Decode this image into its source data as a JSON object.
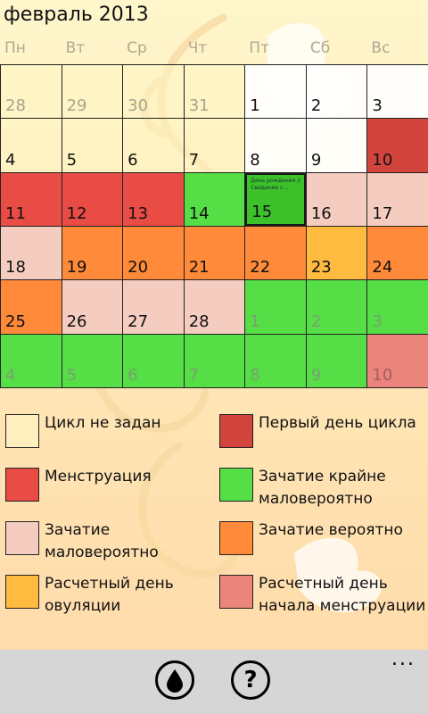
{
  "header": {
    "title": "февраль 2013"
  },
  "weekdays": [
    "Пн",
    "Вт",
    "Ср",
    "Чт",
    "Пт",
    "Сб",
    "Вс"
  ],
  "colors": {
    "none": "#fff6c4",
    "white": "#ffffff",
    "menstruation": "#e84c45",
    "first_day": "#d1453c",
    "low_chance": "#f4ccc0",
    "very_low": "#55de45",
    "likely": "#ff8a3a",
    "ovulation": "#ffbb3f",
    "predicted_menstruation": "#eb847a",
    "today_green": "#3dc12b"
  },
  "calendar": {
    "rows": [
      [
        {
          "day": "28",
          "color": "none",
          "other": true
        },
        {
          "day": "29",
          "color": "none",
          "other": true
        },
        {
          "day": "30",
          "color": "none",
          "other": true
        },
        {
          "day": "31",
          "color": "none",
          "other": true
        },
        {
          "day": "1",
          "color": "white"
        },
        {
          "day": "2",
          "color": "white"
        },
        {
          "day": "3",
          "color": "white"
        }
      ],
      [
        {
          "day": "4",
          "color": "none"
        },
        {
          "day": "5",
          "color": "none"
        },
        {
          "day": "6",
          "color": "none"
        },
        {
          "day": "7",
          "color": "none"
        },
        {
          "day": "8",
          "color": "white"
        },
        {
          "day": "9",
          "color": "white"
        },
        {
          "day": "10",
          "color": "first_day"
        }
      ],
      [
        {
          "day": "11",
          "color": "menstruation"
        },
        {
          "day": "12",
          "color": "menstruation"
        },
        {
          "day": "13",
          "color": "menstruation"
        },
        {
          "day": "14",
          "color": "very_low"
        },
        {
          "day": "15",
          "color": "today_green",
          "today": true,
          "note": "День рождения // Свидание с..."
        },
        {
          "day": "16",
          "color": "low_chance"
        },
        {
          "day": "17",
          "color": "low_chance"
        }
      ],
      [
        {
          "day": "18",
          "color": "low_chance"
        },
        {
          "day": "19",
          "color": "likely"
        },
        {
          "day": "20",
          "color": "likely"
        },
        {
          "day": "21",
          "color": "likely"
        },
        {
          "day": "22",
          "color": "likely"
        },
        {
          "day": "23",
          "color": "ovulation"
        },
        {
          "day": "24",
          "color": "likely"
        }
      ],
      [
        {
          "day": "25",
          "color": "likely"
        },
        {
          "day": "26",
          "color": "low_chance"
        },
        {
          "day": "27",
          "color": "low_chance"
        },
        {
          "day": "28",
          "color": "low_chance"
        },
        {
          "day": "1",
          "color": "very_low",
          "other": true,
          "faded": "green"
        },
        {
          "day": "2",
          "color": "very_low",
          "other": true,
          "faded": "green"
        },
        {
          "day": "3",
          "color": "very_low",
          "other": true,
          "faded": "green"
        }
      ],
      [
        {
          "day": "4",
          "color": "very_low",
          "other": true,
          "faded": "green"
        },
        {
          "day": "5",
          "color": "very_low",
          "other": true,
          "faded": "green"
        },
        {
          "day": "6",
          "color": "very_low",
          "other": true,
          "faded": "green"
        },
        {
          "day": "7",
          "color": "very_low",
          "other": true,
          "faded": "green"
        },
        {
          "day": "8",
          "color": "very_low",
          "other": true,
          "faded": "green"
        },
        {
          "day": "9",
          "color": "very_low",
          "other": true,
          "faded": "green"
        },
        {
          "day": "10",
          "color": "predicted_menstruation",
          "other": true,
          "faded": "red"
        }
      ]
    ]
  },
  "legend": [
    {
      "label": "Цикл не задан",
      "color": "none"
    },
    {
      "label": "Первый день цикла",
      "color": "first_day"
    },
    {
      "label": "Менструация",
      "color": "menstruation"
    },
    {
      "label": "Зачатие крайне маловероятно",
      "color": "very_low"
    },
    {
      "label": "Зачатие маловероятно",
      "color": "low_chance"
    },
    {
      "label": "Зачатие вероятно",
      "color": "likely"
    },
    {
      "label": "Расчетный день овуляции",
      "color": "ovulation"
    },
    {
      "label": "Расчетный день начала менструации",
      "color": "predicted_menstruation"
    }
  ],
  "appbar": {
    "buttons": [
      {
        "name": "drop-button",
        "icon": "drop-icon"
      },
      {
        "name": "help-button",
        "icon": "question-icon",
        "text": "?"
      }
    ],
    "more": "..."
  }
}
